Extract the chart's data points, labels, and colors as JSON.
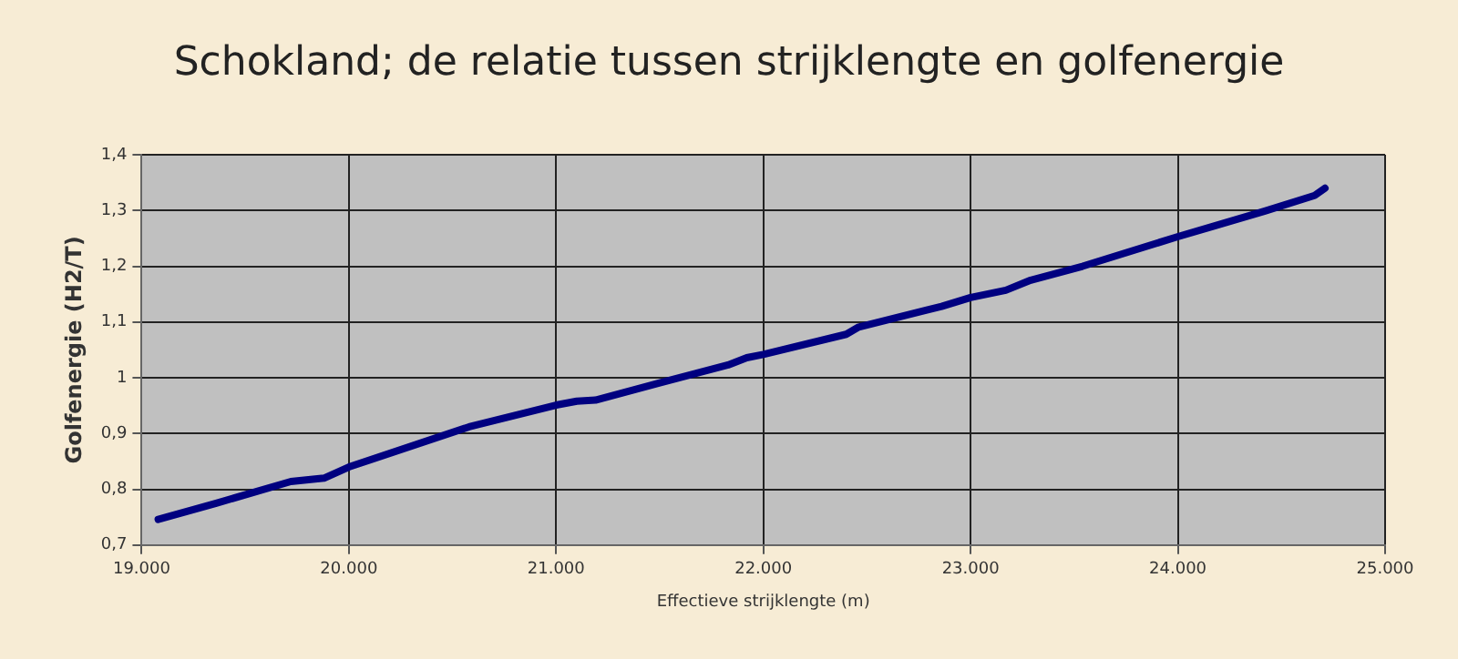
{
  "chart_data": {
    "type": "line",
    "title": "Schokland; de relatie tussen strijklengte en golfenergie",
    "xlabel": "Effectieve strijklengte (m)",
    "ylabel": "Golfenergie (H2/T)",
    "x": [
      19080,
      19360,
      19720,
      19880,
      20000,
      20580,
      21000,
      21100,
      21190,
      21500,
      21830,
      21920,
      22000,
      22400,
      22460,
      22860,
      23000,
      23170,
      23290,
      23540,
      24000,
      24420,
      24660,
      24710
    ],
    "series": [
      {
        "color": "#000080",
        "values": [
          0.746,
          0.775,
          0.814,
          0.82,
          0.84,
          0.912,
          0.951,
          0.958,
          0.96,
          0.991,
          1.023,
          1.036,
          1.042,
          1.078,
          1.091,
          1.128,
          1.144,
          1.157,
          1.175,
          1.2,
          1.253,
          1.299,
          1.327,
          1.34
        ]
      }
    ],
    "xlim": [
      19000,
      25000
    ],
    "xticks": [
      {
        "value": 19000,
        "label": "19.000"
      },
      {
        "value": 20000,
        "label": "20.000"
      },
      {
        "value": 21000,
        "label": "21.000"
      },
      {
        "value": 22000,
        "label": "22.000"
      },
      {
        "value": 23000,
        "label": "23.000"
      },
      {
        "value": 24000,
        "label": "24.000"
      },
      {
        "value": 25000,
        "label": "25.000"
      }
    ],
    "ylim": [
      0.7,
      1.4
    ],
    "yticks": [
      {
        "value": 0.7,
        "label": "0,7"
      },
      {
        "value": 0.8,
        "label": "0,8"
      },
      {
        "value": 0.9,
        "label": "0,9"
      },
      {
        "value": 1,
        "label": "1"
      },
      {
        "value": 1.1,
        "label": "1,1"
      },
      {
        "value": 1.2,
        "label": "1,2"
      },
      {
        "value": 1.3,
        "label": "1,3"
      },
      {
        "value": 1.4,
        "label": "1,4"
      }
    ],
    "grid": true,
    "legend": false,
    "marker": "none",
    "line_style": "solid"
  }
}
